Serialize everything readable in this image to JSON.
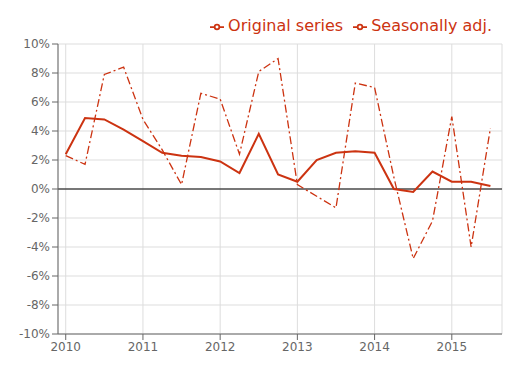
{
  "chart_data": {
    "type": "line",
    "x": [
      2010.0,
      2010.25,
      2010.5,
      2010.75,
      2011.0,
      2011.25,
      2011.5,
      2011.75,
      2012.0,
      2012.25,
      2012.5,
      2012.75,
      2013.0,
      2013.25,
      2013.5,
      2013.75,
      2014.0,
      2014.25,
      2014.5,
      2014.75,
      2015.0,
      2015.25,
      2015.5
    ],
    "series": [
      {
        "name": "Original series",
        "color": "#cc3311",
        "line_style": "dashdot",
        "values": [
          2.3,
          1.7,
          7.9,
          8.4,
          4.8,
          2.7,
          0.3,
          6.6,
          6.2,
          2.4,
          8.1,
          9.0,
          0.3,
          -0.5,
          -1.3,
          7.3,
          7.0,
          0.8,
          -4.8,
          -2.2,
          5.0,
          -4.0,
          4.2
        ]
      },
      {
        "name": "Seasonally adj.",
        "color": "#cc3311",
        "line_style": "solid",
        "values": [
          2.4,
          4.9,
          4.8,
          4.1,
          3.3,
          2.5,
          2.3,
          2.2,
          1.9,
          1.1,
          3.8,
          1.0,
          0.5,
          2.0,
          2.5,
          2.6,
          2.5,
          0.0,
          -0.2,
          1.2,
          0.5,
          0.5,
          0.2
        ]
      }
    ],
    "xlim": [
      2009.9,
      2015.65
    ],
    "xticks": [
      2010,
      2011,
      2012,
      2013,
      2014,
      2015
    ],
    "ylim": [
      -10,
      10
    ],
    "yticks": [
      {
        "value": -10,
        "label": "-10%"
      },
      {
        "value": -8,
        "label": "-8%"
      },
      {
        "value": -6,
        "label": "-6%"
      },
      {
        "value": -4,
        "label": "-4%"
      },
      {
        "value": -2,
        "label": "-2%"
      },
      {
        "value": 0,
        "label": "0%"
      },
      {
        "value": 2,
        "label": "2%"
      },
      {
        "value": 4,
        "label": "4%"
      },
      {
        "value": 6,
        "label": "6%"
      },
      {
        "value": 8,
        "label": "8%"
      },
      {
        "value": 10,
        "label": "10%"
      }
    ],
    "grid": true,
    "legend": "upper right"
  }
}
